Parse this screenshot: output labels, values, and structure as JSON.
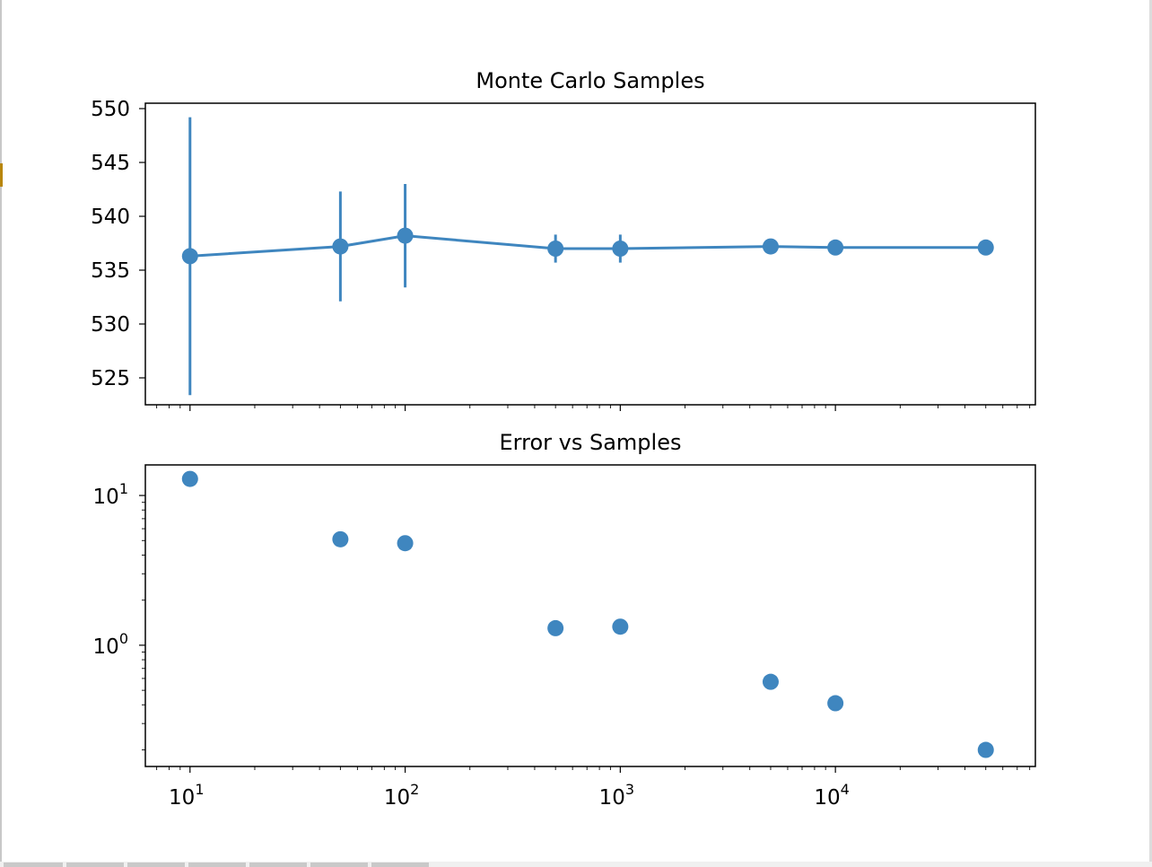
{
  "chart_data": [
    {
      "type": "line",
      "title": "Monte Carlo Samples",
      "xscale": "log",
      "xlim": [
        6.2,
        85000
      ],
      "ylim": [
        522.5,
        550.5
      ],
      "yticks": [
        525,
        530,
        535,
        540,
        545,
        550
      ],
      "x_ticks_labeled": false,
      "series": [
        {
          "x": [
            10,
            50,
            100,
            500,
            1000,
            5000,
            10000,
            50000
          ],
          "y": [
            536.3,
            537.2,
            538.2,
            537.0,
            537.0,
            537.2,
            537.1,
            537.1
          ],
          "yerr": [
            12.9,
            5.1,
            4.8,
            1.3,
            1.3,
            0.57,
            0.41,
            0.2
          ],
          "color": "#3f86bf"
        }
      ]
    },
    {
      "type": "scatter",
      "title": "Error vs Samples",
      "xscale": "log",
      "yscale": "log",
      "xlim": [
        6.2,
        85000
      ],
      "ylim": [
        0.155,
        16
      ],
      "xticks": [
        10,
        100,
        1000,
        10000
      ],
      "xtick_labels": [
        {
          "base": "10",
          "exp": "1"
        },
        {
          "base": "10",
          "exp": "2"
        },
        {
          "base": "10",
          "exp": "3"
        },
        {
          "base": "10",
          "exp": "4"
        }
      ],
      "yticks": [
        1,
        10
      ],
      "ytick_labels": [
        {
          "base": "10",
          "exp": "0"
        },
        {
          "base": "10",
          "exp": "1"
        }
      ],
      "series": [
        {
          "x": [
            10,
            50,
            100,
            500,
            1000,
            5000,
            10000,
            50000
          ],
          "y": [
            12.9,
            5.1,
            4.8,
            1.3,
            1.33,
            0.57,
            0.41,
            0.2
          ],
          "color": "#3f86bf"
        }
      ]
    }
  ]
}
